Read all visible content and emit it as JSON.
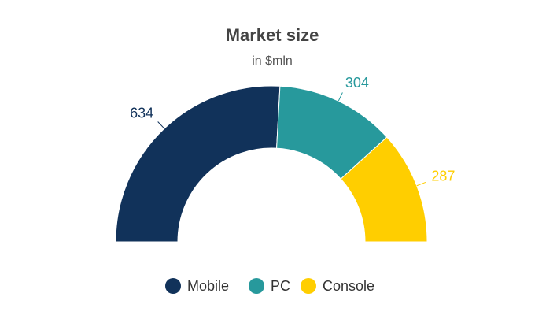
{
  "chart_data": {
    "type": "pie",
    "title": "Market size",
    "subtitle": "in $mln",
    "categories": [
      "Mobile",
      "PC",
      "Console"
    ],
    "values": [
      634,
      304,
      287
    ],
    "colors": [
      "#11325a",
      "#27999c",
      "#ffce00"
    ],
    "legend": "bottom"
  }
}
